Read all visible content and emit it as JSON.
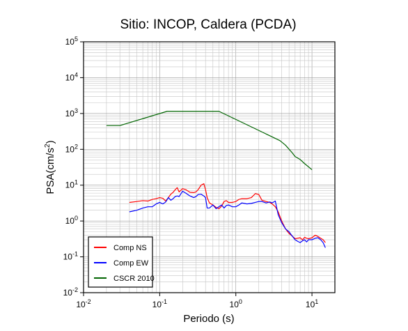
{
  "chart_data": {
    "type": "line",
    "title": "Sitio: INCOP, Caldera (PCDA)",
    "xlabel": "Periodo (s)",
    "ylabel": "PSA(cm/s2)",
    "ylabel_parts": {
      "main": "PSA(cm/s",
      "sup": "2",
      "close": ")"
    },
    "xscale": "log",
    "yscale": "log",
    "xlim": [
      0.01,
      20
    ],
    "ylim": [
      0.01,
      100000
    ],
    "grid": true,
    "legend_position": "bottom-left",
    "x_ticks": [
      {
        "base": "10",
        "exp": "-2",
        "value": 0.01
      },
      {
        "base": "10",
        "exp": "-1",
        "value": 0.1
      },
      {
        "base": "10",
        "exp": "0",
        "value": 1
      },
      {
        "base": "10",
        "exp": "1",
        "value": 10
      }
    ],
    "y_ticks": [
      {
        "base": "10",
        "exp": "-2",
        "value": 0.01
      },
      {
        "base": "10",
        "exp": "-1",
        "value": 0.1
      },
      {
        "base": "10",
        "exp": "0",
        "value": 1
      },
      {
        "base": "10",
        "exp": "1",
        "value": 10
      },
      {
        "base": "10",
        "exp": "2",
        "value": 100
      },
      {
        "base": "10",
        "exp": "3",
        "value": 1000
      },
      {
        "base": "10",
        "exp": "4",
        "value": 10000
      },
      {
        "base": "10",
        "exp": "5",
        "value": 100000
      }
    ],
    "series": [
      {
        "name": "Comp NS",
        "color": "#ff0000",
        "x": [
          0.04,
          0.05,
          0.06,
          0.07,
          0.08,
          0.09,
          0.1,
          0.11,
          0.12,
          0.13,
          0.14,
          0.15,
          0.16,
          0.17,
          0.18,
          0.2,
          0.22,
          0.25,
          0.28,
          0.3,
          0.32,
          0.35,
          0.38,
          0.4,
          0.42,
          0.45,
          0.5,
          0.55,
          0.6,
          0.65,
          0.7,
          0.75,
          0.8,
          0.9,
          1.0,
          1.1,
          1.2,
          1.4,
          1.6,
          1.8,
          2.0,
          2.2,
          2.5,
          2.8,
          3.0,
          3.3,
          3.6,
          4.0,
          4.5,
          5.0,
          5.5,
          6.0,
          6.5,
          7.0,
          7.5,
          8.0,
          8.5,
          9.0,
          10.0,
          11.0,
          12.0,
          13.0,
          14.0,
          15.0
        ],
        "values": [
          3.3,
          3.5,
          3.7,
          3.6,
          4.0,
          4.2,
          4.5,
          4.3,
          3.6,
          4.5,
          5.6,
          6.3,
          7.5,
          8.5,
          6.5,
          8.0,
          7.5,
          6.3,
          6.2,
          6.5,
          7.5,
          10.0,
          11.0,
          7.5,
          4.5,
          3.2,
          2.8,
          2.4,
          2.2,
          2.6,
          3.5,
          3.7,
          3.3,
          3.3,
          3.5,
          4.0,
          4.2,
          4.2,
          4.5,
          5.8,
          5.5,
          3.8,
          3.5,
          3.3,
          3.0,
          2.5,
          1.8,
          1.0,
          0.6,
          0.45,
          0.38,
          0.32,
          0.33,
          0.34,
          0.3,
          0.35,
          0.33,
          0.32,
          0.34,
          0.4,
          0.37,
          0.33,
          0.3,
          0.25
        ]
      },
      {
        "name": "Comp EW",
        "color": "#0000ff",
        "x": [
          0.04,
          0.05,
          0.06,
          0.07,
          0.08,
          0.09,
          0.1,
          0.11,
          0.12,
          0.13,
          0.14,
          0.15,
          0.16,
          0.17,
          0.18,
          0.2,
          0.22,
          0.25,
          0.28,
          0.3,
          0.32,
          0.35,
          0.38,
          0.4,
          0.42,
          0.45,
          0.5,
          0.55,
          0.6,
          0.65,
          0.7,
          0.75,
          0.8,
          0.9,
          1.0,
          1.1,
          1.2,
          1.4,
          1.6,
          1.8,
          2.0,
          2.2,
          2.5,
          2.8,
          3.0,
          3.3,
          3.6,
          4.0,
          4.5,
          5.0,
          5.5,
          6.0,
          6.5,
          7.0,
          7.5,
          8.0,
          8.5,
          9.0,
          10.0,
          11.0,
          12.0,
          13.0,
          14.0,
          15.0
        ],
        "values": [
          1.8,
          2.0,
          2.3,
          2.5,
          2.5,
          3.0,
          3.3,
          3.0,
          3.4,
          4.5,
          3.8,
          4.2,
          4.8,
          5.0,
          4.8,
          6.8,
          6.0,
          5.0,
          4.5,
          4.8,
          5.5,
          5.6,
          5.0,
          4.5,
          2.3,
          2.3,
          2.8,
          2.2,
          2.5,
          2.8,
          2.3,
          2.7,
          2.8,
          2.5,
          2.5,
          2.8,
          3.2,
          3.0,
          3.1,
          3.3,
          3.5,
          3.5,
          3.2,
          3.4,
          3.2,
          3.6,
          1.5,
          0.9,
          0.6,
          0.5,
          0.38,
          0.3,
          0.27,
          0.25,
          0.28,
          0.3,
          0.26,
          0.3,
          0.3,
          0.33,
          0.34,
          0.3,
          0.25,
          0.18
        ]
      },
      {
        "name": "CSCR 2010",
        "color": "#006400",
        "x": [
          0.02,
          0.03,
          0.125,
          0.6,
          3.8,
          4.5,
          5.5,
          6.0,
          7.0,
          8.0,
          10.0
        ],
        "values": [
          460,
          460,
          1150,
          1150,
          175,
          130,
          80,
          63,
          52,
          40,
          27
        ]
      }
    ]
  }
}
